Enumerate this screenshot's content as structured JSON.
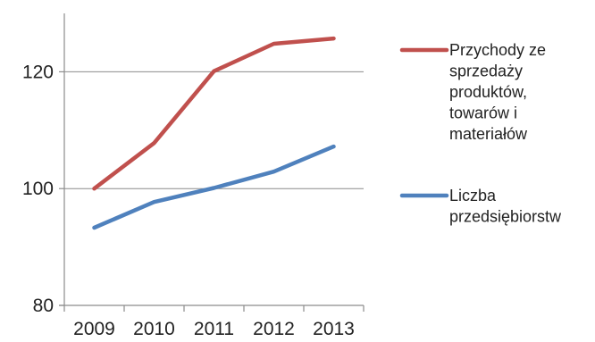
{
  "chart_data": {
    "type": "line",
    "title": "",
    "xlabel": "",
    "ylabel": "",
    "categories": [
      "2009",
      "2010",
      "2011",
      "2012",
      "2013"
    ],
    "ylim": [
      80,
      130
    ],
    "yticks": [
      80,
      100,
      120
    ],
    "ytick_labels": [
      "80",
      "100",
      "120"
    ],
    "grid": true,
    "legend_position": "right",
    "series": [
      {
        "name": "Przychody ze sprzedaży produktów, towarów i materiałów",
        "legend_lines": [
          "Przychody ze",
          "sprzedaży",
          "produktów,",
          "towarów i",
          "materiałów"
        ],
        "color": "#C0504D",
        "values": [
          100.0,
          107.8,
          120.1,
          124.8,
          125.7
        ]
      },
      {
        "name": "Liczba przedsiębiorstw",
        "legend_lines": [
          "Liczba",
          "przedsiębiorstw"
        ],
        "color": "#4F81BD",
        "values": [
          93.3,
          97.7,
          100.1,
          102.9,
          107.2
        ]
      }
    ]
  }
}
